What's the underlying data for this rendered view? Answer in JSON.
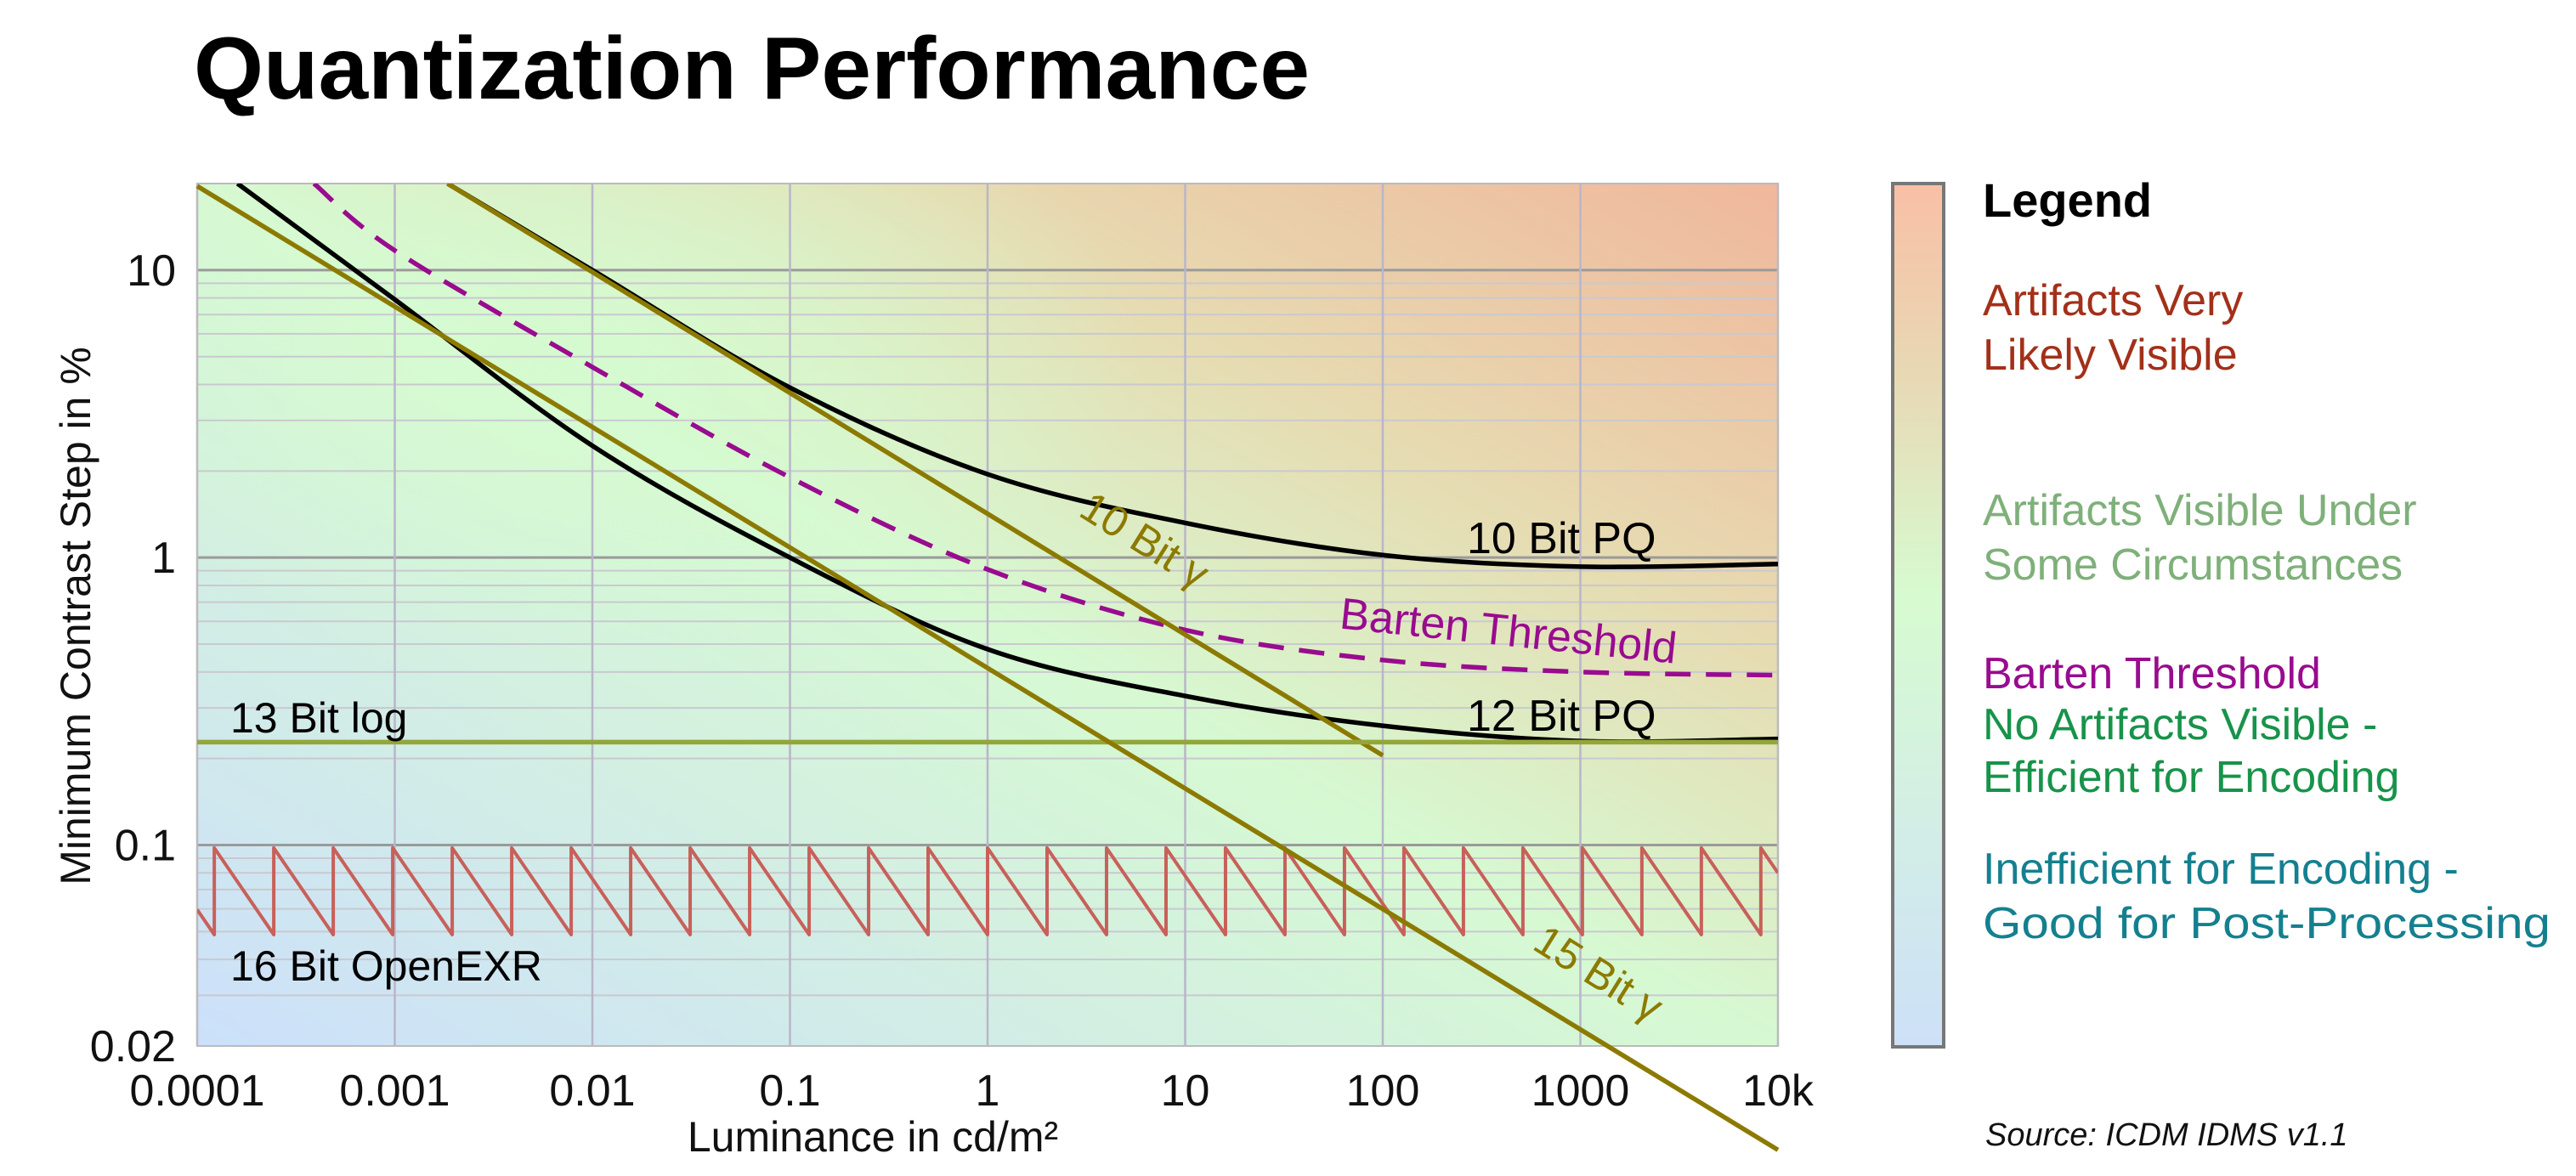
{
  "title": "Quantization Performance",
  "chart_data": {
    "type": "line",
    "title": "Quantization Performance",
    "xlabel": "Luminance in cd/m²",
    "ylabel": "Minimum Contrast Step in %",
    "xscale": "log",
    "yscale": "log",
    "xlim": [
      0.0001,
      10000
    ],
    "ylim": [
      0.02,
      20
    ],
    "x_ticks": [
      {
        "value": 0.0001,
        "label": "0.0001"
      },
      {
        "value": 0.001,
        "label": "0.001"
      },
      {
        "value": 0.01,
        "label": "0.01"
      },
      {
        "value": 0.1,
        "label": "0.1"
      },
      {
        "value": 1,
        "label": "1"
      },
      {
        "value": 10,
        "label": "10"
      },
      {
        "value": 100,
        "label": "100"
      },
      {
        "value": 1000,
        "label": "1000"
      },
      {
        "value": 10000,
        "label": "10k"
      }
    ],
    "y_ticks": [
      {
        "value": 10,
        "label": "10"
      },
      {
        "value": 1,
        "label": "1"
      },
      {
        "value": 0.1,
        "label": "0.1"
      },
      {
        "value": 0.02,
        "label": "0.02"
      }
    ],
    "grid": true,
    "series": [
      {
        "name": "10 Bit PQ",
        "color": "#000000",
        "style": "solid",
        "x": [
          0.00185,
          0.01,
          0.1,
          1,
          10,
          100,
          1000,
          10000
        ],
        "y": [
          20,
          10,
          3.9,
          1.95,
          1.32,
          1.02,
          0.93,
          0.95
        ]
      },
      {
        "name": "12 Bit PQ",
        "color": "#000000",
        "style": "solid",
        "x": [
          0.00016,
          0.001,
          0.01,
          0.1,
          1,
          10,
          100,
          1000,
          10000
        ],
        "y": [
          20,
          7.9,
          2.45,
          1.0,
          0.48,
          0.33,
          0.26,
          0.23,
          0.234
        ]
      },
      {
        "name": "Barten Threshold",
        "color": "#990b8f",
        "style": "dashed",
        "x": [
          0.00039,
          0.001,
          0.01,
          0.1,
          1,
          10,
          100,
          1000,
          10000
        ],
        "y": [
          20,
          11.7,
          4.6,
          1.9,
          0.91,
          0.56,
          0.44,
          0.4,
          0.39
        ]
      },
      {
        "name": "10 Bit γ",
        "color": "#8c7a00",
        "style": "solid",
        "x": [
          0.00185,
          100
        ],
        "y": [
          20,
          0.205
        ]
      },
      {
        "name": "15 Bit γ",
        "color": "#8c7a00",
        "style": "solid",
        "x": [
          0.0001,
          10000
        ],
        "y": [
          19.6,
          0.0087
        ]
      },
      {
        "name": "13 Bit log",
        "color": "#94a63a",
        "style": "solid",
        "x": [
          0.0001,
          10000
        ],
        "y": [
          0.228,
          0.228
        ]
      },
      {
        "name": "16 Bit OpenEXR",
        "color": "#c8605a",
        "style": "solid",
        "x": [
          0.0001,
          0.00012207,
          0.00012207,
          0.00024414,
          0.00024414,
          0.00048828,
          0.00048828,
          0.00097656,
          0.00097656,
          0.0019531,
          0.0019531,
          0.0039063,
          0.0039063,
          0.0078125,
          0.0078125,
          0.015625,
          0.015625,
          0.03125,
          0.03125,
          0.0625,
          0.0625,
          0.125,
          0.125,
          0.25,
          0.25,
          0.5,
          0.5,
          1,
          1,
          2,
          2,
          4,
          4,
          8,
          8,
          16,
          16,
          32,
          32,
          64,
          64,
          128,
          128,
          256,
          256,
          512,
          512,
          1024,
          1024,
          2048,
          2048,
          4096,
          4096,
          8192,
          8192,
          10000
        ],
        "y": [
          0.0596,
          0.0488,
          0.0977,
          0.0488,
          0.0977,
          0.0488,
          0.0977,
          0.0488,
          0.0977,
          0.0488,
          0.0977,
          0.0488,
          0.0977,
          0.0488,
          0.0977,
          0.0488,
          0.0977,
          0.0488,
          0.0977,
          0.0488,
          0.0977,
          0.0488,
          0.0977,
          0.0488,
          0.0977,
          0.0488,
          0.0977,
          0.0488,
          0.0977,
          0.0488,
          0.0977,
          0.0488,
          0.0977,
          0.0488,
          0.0977,
          0.0488,
          0.0977,
          0.0488,
          0.0977,
          0.0488,
          0.0977,
          0.0488,
          0.0977,
          0.0488,
          0.0977,
          0.0488,
          0.0977,
          0.0488,
          0.0977,
          0.0488,
          0.0977,
          0.0488,
          0.0977,
          0.0488,
          0.0977,
          0.08
        ]
      }
    ],
    "annotations": {
      "pq10": "10 Bit PQ",
      "pq12": "12 Bit PQ",
      "barten": "Barten Threshold",
      "gamma10": "10 Bit γ",
      "gamma15": "15 Bit γ",
      "log13": "13 Bit log",
      "exr16": "16 Bit OpenEXR"
    },
    "background_colors": {
      "high": "#f0b79c",
      "mid": "#d6f9d2",
      "low": "#cce0fb"
    }
  },
  "legend": {
    "title": "Legend",
    "items": [
      {
        "lines": [
          "Artifacts Very",
          "Likely Visible"
        ],
        "color": "#a3301a"
      },
      {
        "lines": [
          "Artifacts Visible Under",
          "Some Circumstances"
        ],
        "color": "#7fb07a"
      },
      {
        "lines": [
          "Barten Threshold"
        ],
        "color": "#990b8f"
      },
      {
        "lines": [
          "No Artifacts Visible -",
          "Efficient for Encoding"
        ],
        "color": "#17934a"
      },
      {
        "lines": [
          "Inefficient for Encoding -",
          "Good for Post-Processing"
        ],
        "color": "#14808f"
      }
    ]
  },
  "source": "Source: ICDM IDMS v1.1"
}
